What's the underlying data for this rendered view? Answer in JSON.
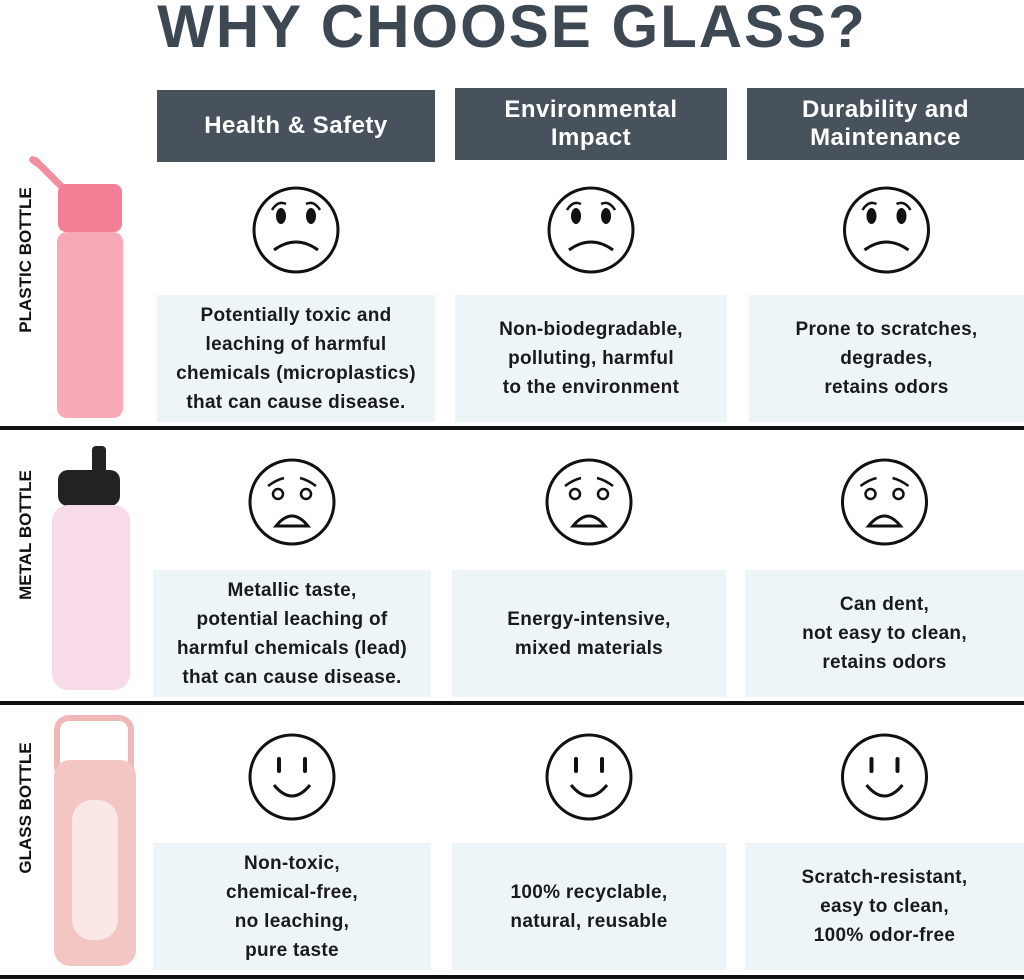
{
  "title": "WHY CHOOSE GLASS?",
  "columns": [
    [
      "Health & Safety"
    ],
    [
      "Environmental",
      "Impact"
    ],
    [
      "Durability and",
      "Maintenance"
    ]
  ],
  "rows": [
    {
      "label": "PLASTIC BOTTLE",
      "cells": [
        [
          "Potentially toxic and",
          "leaching of harmful",
          "chemicals (microplastics)",
          "that can cause disease."
        ],
        [
          "Non-biodegradable,",
          "polluting, harmful",
          "to the environment"
        ],
        [
          "Prone to scratches,",
          "degrades,",
          "retains odors"
        ]
      ]
    },
    {
      "label": "METAL BOTTLE",
      "cells": [
        [
          "Metallic taste,",
          "potential leaching of",
          "harmful chemicals (lead)",
          "that can cause disease."
        ],
        [
          "Energy-intensive,",
          "mixed materials"
        ],
        [
          "Can dent,",
          "not easy to clean,",
          "retains odors"
        ]
      ]
    },
    {
      "label": "GLASS BOTTLE",
      "cells": [
        [
          "Non-toxic,",
          "chemical-free,",
          "no leaching,",
          "pure taste"
        ],
        [
          "100% recyclable,",
          "natural, reusable"
        ],
        [
          "Scratch-resistant,",
          "easy to clean,",
          "100% odor-free"
        ]
      ]
    }
  ]
}
